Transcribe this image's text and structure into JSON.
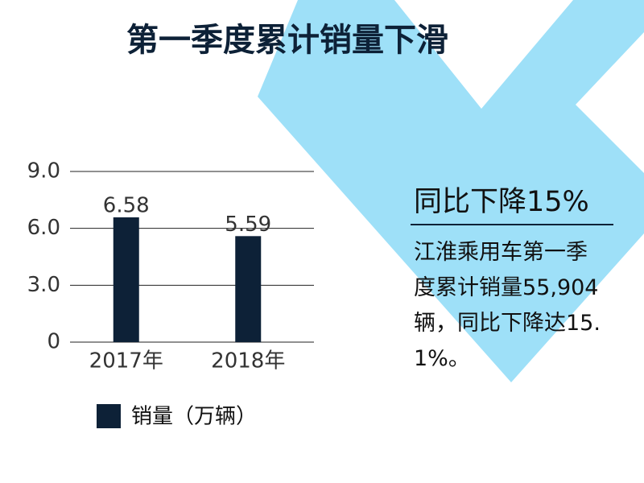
{
  "chart_data": {
    "type": "bar",
    "title": "第一季度累计销量下滑",
    "categories": [
      "2017年",
      "2018年"
    ],
    "series": [
      {
        "name": "销量（万辆）",
        "color": "#0d2137",
        "values": [
          6.58,
          5.59
        ]
      }
    ],
    "ylim": [
      0,
      9
    ],
    "yticks": [
      0,
      {
        "value": 3,
        "label": "3.0"
      },
      {
        "value": 6,
        "label": "6.0"
      },
      {
        "value": 9,
        "label": "9.0"
      }
    ],
    "grid": true,
    "annotation_title": "同比下降15%",
    "annotation_text": "江淮乘用车第一季度累计销量55,904辆，同比下降达15.1%。"
  }
}
